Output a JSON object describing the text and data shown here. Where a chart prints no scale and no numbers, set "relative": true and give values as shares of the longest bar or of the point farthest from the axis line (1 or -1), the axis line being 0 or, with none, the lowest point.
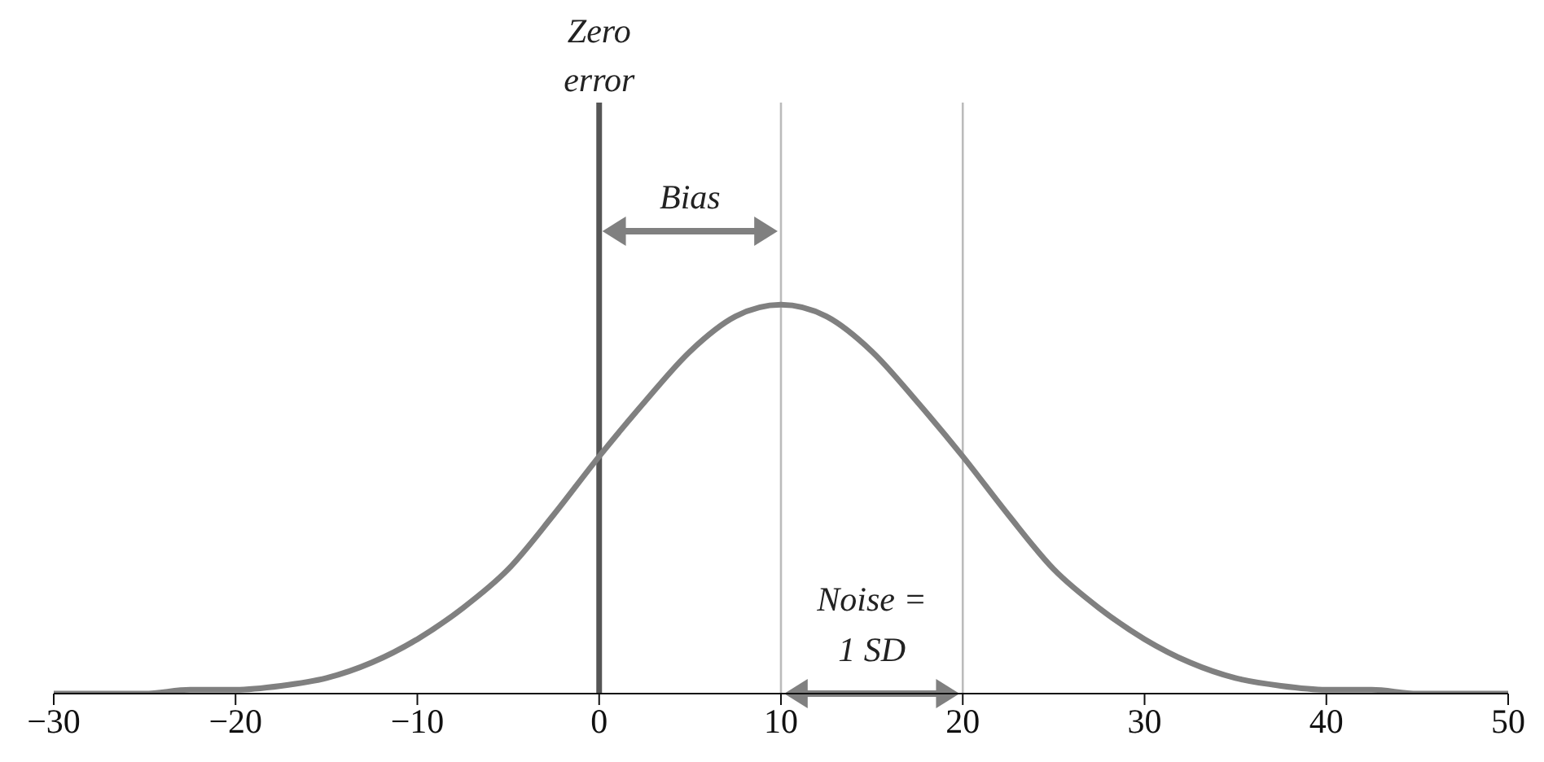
{
  "chart_data": {
    "type": "line",
    "relative": true,
    "x": [
      -30,
      -27.5,
      -25,
      -22.5,
      -20,
      -17.5,
      -15,
      -12.5,
      -10,
      -7.5,
      -5,
      -2.5,
      0,
      2.5,
      5,
      7.5,
      10,
      12.5,
      15,
      17.5,
      20,
      22.5,
      25,
      27.5,
      30,
      32.5,
      35,
      37.5,
      40,
      42.5,
      45,
      47.5,
      50
    ],
    "series": [
      {
        "color": "#808080",
        "values": [
          0,
          0,
          0,
          0.01,
          0.01,
          0.02,
          0.04,
          0.08,
          0.14,
          0.22,
          0.32,
          0.46,
          0.61,
          0.75,
          0.88,
          0.97,
          1,
          0.97,
          0.88,
          0.75,
          0.61,
          0.46,
          0.32,
          0.22,
          0.14,
          0.08,
          0.04,
          0.02,
          0.01,
          0.01,
          0,
          0,
          0
        ]
      }
    ],
    "xlim": [
      -30,
      50
    ],
    "xticks": [
      {
        "value": -30,
        "label": "−30"
      },
      {
        "value": -20,
        "label": "−20"
      },
      {
        "value": -10,
        "label": "−10"
      },
      0,
      10,
      20,
      30,
      40,
      50
    ],
    "ref_lines": [
      {
        "axis": "x",
        "value": 0,
        "label": "Zero error",
        "color": "#555555"
      },
      {
        "axis": "x",
        "value": 10,
        "color": "#bbbbbb"
      },
      {
        "axis": "x",
        "value": 20,
        "color": "#bbbbbb"
      }
    ],
    "annotations": [
      "Bias",
      "Noise = 1 SD"
    ],
    "marker": "none",
    "line_style": "solid"
  }
}
